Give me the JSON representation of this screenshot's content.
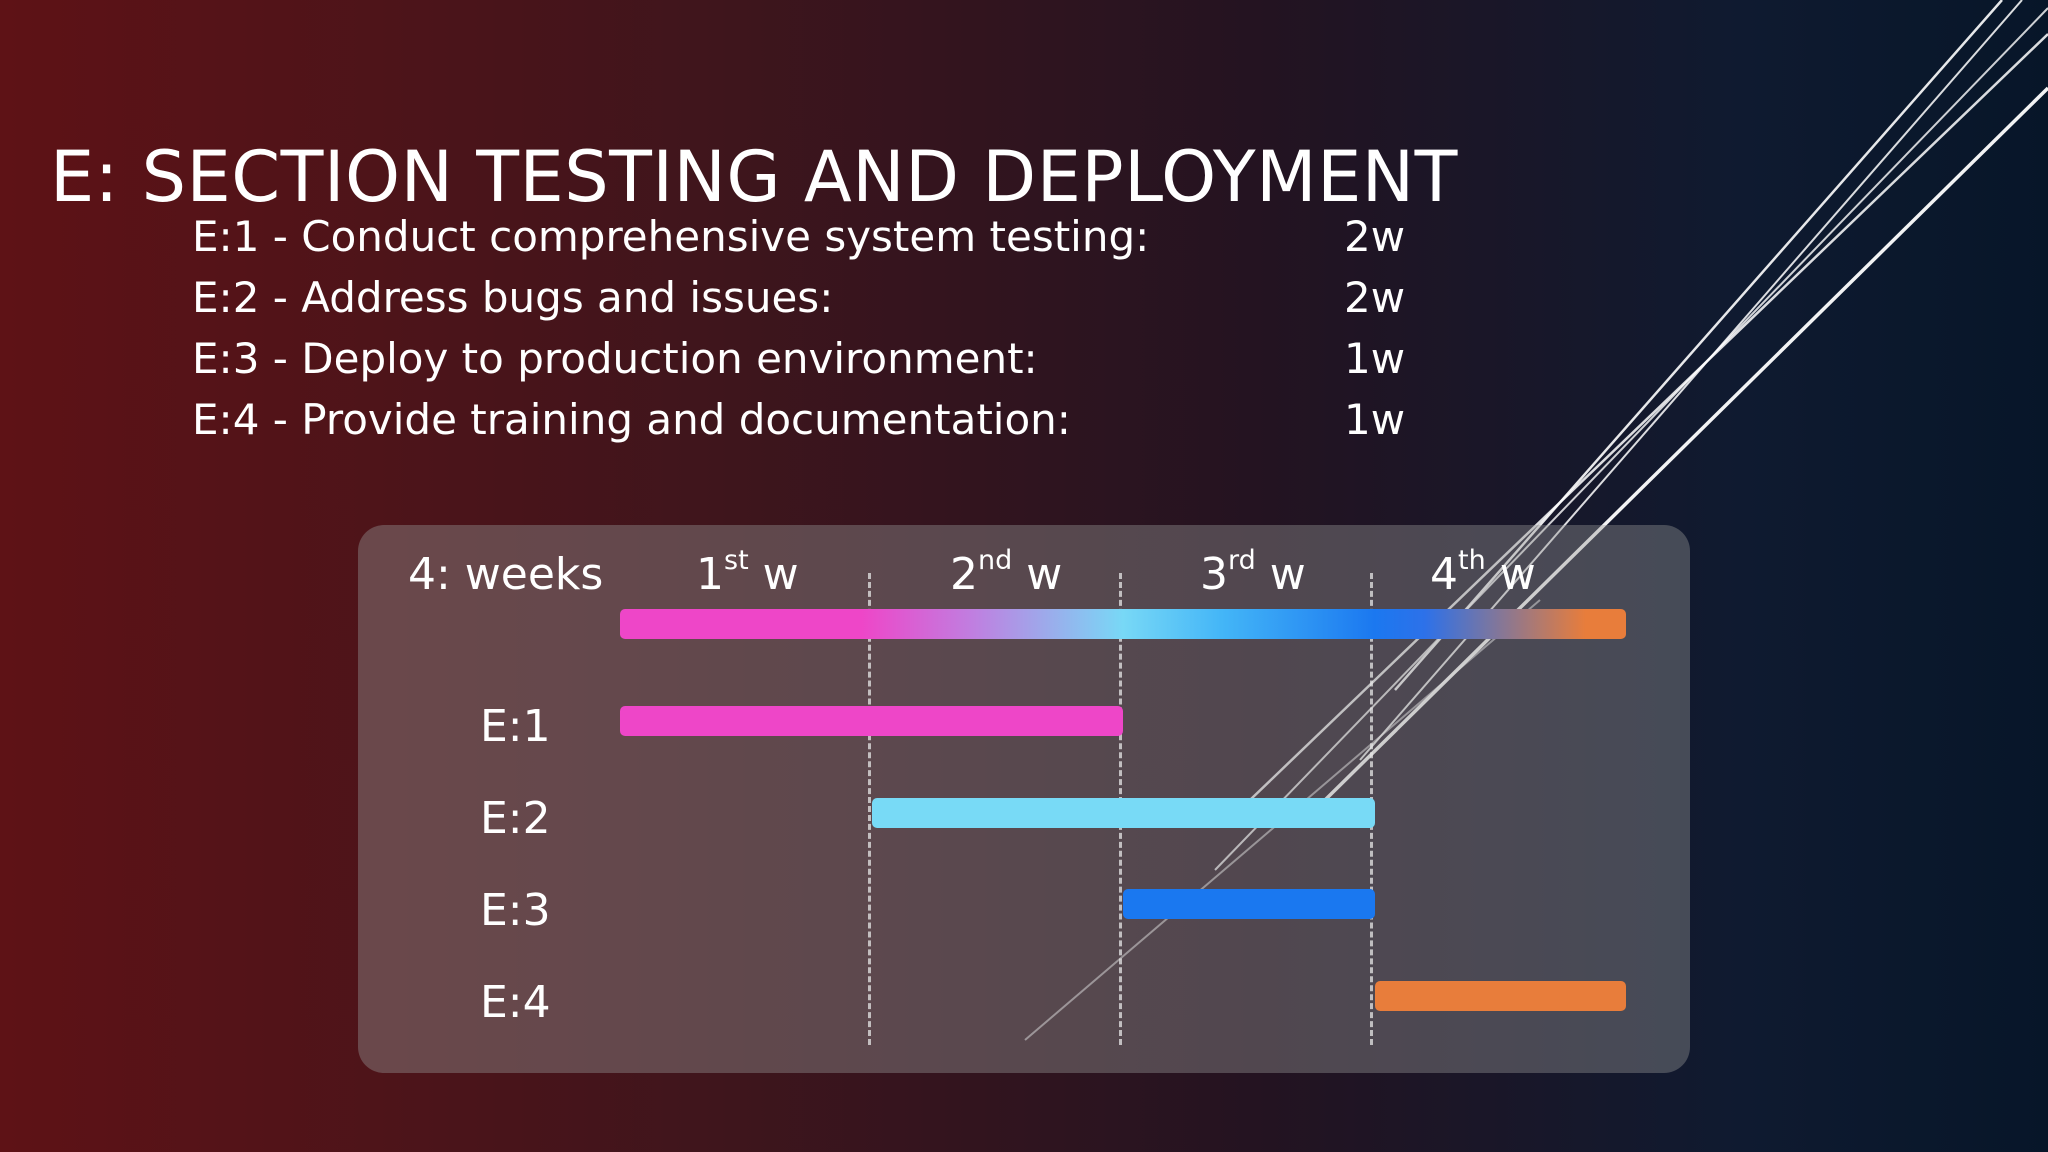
{
  "slide": {
    "title": "E: SECTION TESTING AND DEPLOYMENT",
    "tasks": [
      {
        "label": "E:1 - Conduct comprehensive system testing:",
        "duration": "2w"
      },
      {
        "label": "E:2 - Address bugs and issues:",
        "duration": "2w"
      },
      {
        "label": "E:3 - Deploy to production environment:",
        "duration": "1w"
      },
      {
        "label": "E:4 - Provide training and documentation:",
        "duration": "1w"
      }
    ]
  },
  "chart_data": {
    "type": "gantt",
    "total_label": "4: weeks",
    "weeks": [
      {
        "num": "1",
        "sup": "st",
        "unit": "w"
      },
      {
        "num": "2",
        "sup": "nd",
        "unit": "w"
      },
      {
        "num": "3",
        "sup": "rd",
        "unit": "w"
      },
      {
        "num": "4",
        "sup": "th",
        "unit": "w"
      }
    ],
    "x_range_weeks": [
      0,
      4
    ],
    "tasks": [
      {
        "label": "E:1",
        "start_week": 0,
        "end_week": 2,
        "color": "#ee46c8"
      },
      {
        "label": "E:2",
        "start_week": 1,
        "end_week": 3,
        "color": "#78daf6"
      },
      {
        "label": "E:3",
        "start_week": 2,
        "end_week": 3,
        "color": "#1a78f0"
      },
      {
        "label": "E:4",
        "start_week": 3,
        "end_week": 4,
        "color": "#e87d3b"
      }
    ],
    "timeline_colors": [
      "#ee46c8",
      "#78d8f6",
      "#1b78f0",
      "#e87d3b"
    ]
  }
}
